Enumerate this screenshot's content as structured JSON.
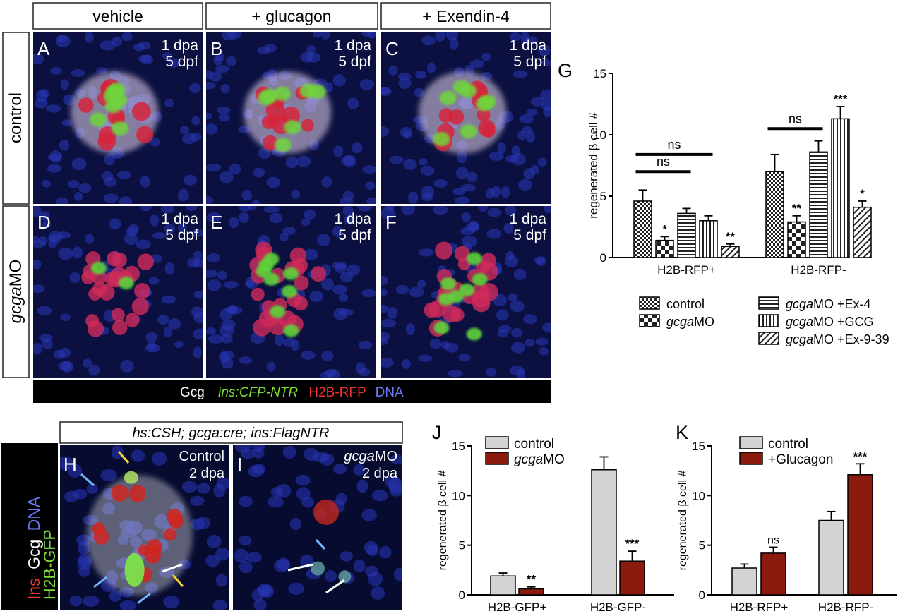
{
  "columns": [
    "vehicle",
    "+ glucagon",
    "+ Exendin-4"
  ],
  "rows": [
    "control",
    "gcgaMO"
  ],
  "row_labels": {
    "control": "control",
    "gcga_italic": "gcga",
    "mo": "MO"
  },
  "micro_panels": [
    {
      "letter": "A",
      "line1": "1 dpa",
      "line2": "5 dpf"
    },
    {
      "letter": "B",
      "line1": "1 dpa",
      "line2": "5 dpf"
    },
    {
      "letter": "C",
      "line1": "1 dpa",
      "line2": "5 dpf"
    },
    {
      "letter": "D",
      "line1": "1 dpa",
      "line2": "5 dpf"
    },
    {
      "letter": "E",
      "line1": "1 dpa",
      "line2": "5 dpf"
    },
    {
      "letter": "F",
      "line1": "1 dpa",
      "line2": "5 dpf"
    }
  ],
  "channel_legend": {
    "gcg": "Gcg",
    "ins": "ins:CFP-NTR",
    "h2b": "H2B-RFP",
    "dna": "DNA",
    "colors": {
      "gcg": "#ffffff",
      "ins": "#7ddc3a",
      "h2b": "#e8322f",
      "dna": "#5b6cf0"
    }
  },
  "bottom_header": "hs:CSH; gcga:cre; ins:FlagNTR",
  "side_legend": {
    "ins": "Ins",
    "gcg": "Gcg",
    "dna": "DNA",
    "h2b": "H2B-GFP"
  },
  "panel_H": {
    "letter": "H",
    "line1": "Control",
    "line2": "2 dpa"
  },
  "panel_I": {
    "letter": "I",
    "line1_italic": "gcga",
    "line1_rest": "MO",
    "line2": "2 dpa"
  },
  "chart_data": [
    {
      "id": "G",
      "letter": "G",
      "type": "bar",
      "ylabel": "regenerated β cell #",
      "ylim": [
        0,
        15
      ],
      "yticks": [
        0,
        5,
        10,
        15
      ],
      "categories": [
        "H2B-RFP+",
        "H2B-RFP-"
      ],
      "series": [
        {
          "name": "control",
          "name_italic": "",
          "name_rest": "control",
          "pattern": "check",
          "values": [
            4.6,
            7.0
          ],
          "errors": [
            0.9,
            1.4
          ],
          "sig": [
            "",
            ""
          ]
        },
        {
          "name": "gcgaMO",
          "name_italic": "gcga",
          "name_rest": "MO",
          "pattern": "bigcheck",
          "values": [
            1.4,
            2.9
          ],
          "errors": [
            0.3,
            0.5
          ],
          "sig": [
            "*",
            "**"
          ]
        },
        {
          "name": "gcgaMO +Ex-4",
          "name_italic": "gcga",
          "name_rest": "MO +Ex-4",
          "pattern": "hlines",
          "values": [
            3.6,
            8.6
          ],
          "errors": [
            0.4,
            0.9
          ],
          "sig": [
            "",
            ""
          ]
        },
        {
          "name": "gcgaMO +GCG",
          "name_italic": "gcga",
          "name_rest": "MO +GCG",
          "pattern": "vlines",
          "values": [
            3.0,
            11.3
          ],
          "errors": [
            0.4,
            1.0
          ],
          "sig": [
            "",
            "***"
          ]
        },
        {
          "name": "gcgaMO +Ex-9-39",
          "name_italic": "gcga",
          "name_rest": "MO +Ex-9-39",
          "pattern": "diag",
          "values": [
            0.9,
            4.1
          ],
          "errors": [
            0.2,
            0.5
          ],
          "sig": [
            "**",
            "*"
          ]
        }
      ],
      "brackets": [
        {
          "label": "ns",
          "group": 0,
          "from": 0,
          "to": 2,
          "y": 7.0
        },
        {
          "label": "ns",
          "group": 0,
          "from": 0,
          "to": 3,
          "y": 8.4
        },
        {
          "label": "ns",
          "group": 1,
          "from": 0,
          "to": 2,
          "y": 10.5
        }
      ]
    },
    {
      "id": "J",
      "letter": "J",
      "type": "bar",
      "ylabel": "regenerated β cell #",
      "ylim": [
        0,
        15
      ],
      "yticks": [
        0,
        5,
        10,
        15
      ],
      "categories": [
        "H2B-GFP+",
        "H2B-GFP-"
      ],
      "series": [
        {
          "name": "control",
          "name_italic": "",
          "name_rest": "control",
          "color": "#d3d3d3",
          "values": [
            1.9,
            12.6
          ],
          "errors": [
            0.3,
            1.3
          ],
          "sig": [
            "",
            ""
          ]
        },
        {
          "name": "gcgaMO",
          "name_italic": "gcga",
          "name_rest": "MO",
          "color": "#8b1a0f",
          "values": [
            0.6,
            3.4
          ],
          "errors": [
            0.2,
            1.0
          ],
          "sig": [
            "**",
            "***"
          ]
        }
      ]
    },
    {
      "id": "K",
      "letter": "K",
      "type": "bar",
      "ylabel": "regenerated β cell #",
      "ylim": [
        0,
        15
      ],
      "yticks": [
        0,
        5,
        10,
        15
      ],
      "categories": [
        "H2B-RFP+",
        "H2B-RFP-"
      ],
      "series": [
        {
          "name": "control",
          "name_italic": "",
          "name_rest": "control",
          "color": "#d3d3d3",
          "values": [
            2.7,
            7.5
          ],
          "errors": [
            0.4,
            0.9
          ],
          "sig": [
            "",
            ""
          ]
        },
        {
          "name": "+Glucagon",
          "name_italic": "",
          "name_rest": "+Glucagon",
          "color": "#8b1a0f",
          "values": [
            4.2,
            12.1
          ],
          "errors": [
            0.6,
            1.1
          ],
          "sig": [
            "ns",
            "***"
          ]
        }
      ]
    }
  ]
}
